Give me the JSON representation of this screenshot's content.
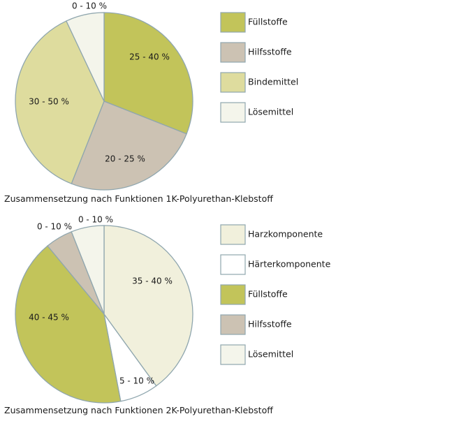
{
  "chart_data": [
    {
      "type": "pie",
      "title": "Zusammensetzung nach Funktionen 1K-Polyurethan-Klebstoff",
      "unit": "%",
      "slices": [
        {
          "name": "Füllstoffe",
          "label": "25 - 40 %",
          "value": 31,
          "color": "#c2c45a"
        },
        {
          "name": "Hilfsstoffe",
          "label": "20 - 25 %",
          "value": 25,
          "color": "#ccc2b3"
        },
        {
          "name": "Bindemittel",
          "label": "30 - 50 %",
          "value": 37,
          "color": "#dedc9e"
        },
        {
          "name": "Lösemittel",
          "label": "0 - 10 %",
          "value": 7,
          "color": "#f4f5eb"
        }
      ],
      "legend": [
        "Füllstoffe",
        "Hilfsstoffe",
        "Bindemittel",
        "Lösemittel"
      ],
      "legend_placement": "right"
    },
    {
      "type": "pie",
      "title": "Zusammensetzung nach Funktionen 2K-Polyurethan-Klebstoff",
      "unit": "%",
      "slices": [
        {
          "name": "Harzkomponente",
          "label": "35 - 40 %",
          "value": 40,
          "color": "#f1f0dc"
        },
        {
          "name": "Härterkomponente",
          "label": "5 - 10 %",
          "value": 7,
          "color": "#ffffff"
        },
        {
          "name": "Füllstoffe",
          "label": "40 - 45 %",
          "value": 42,
          "color": "#c2c45a"
        },
        {
          "name": "Hilfsstoffe",
          "label": "0 - 10 %",
          "value": 5,
          "color": "#ccc2b3"
        },
        {
          "name": "Lösemittel",
          "label": "0 - 10 %",
          "value": 6,
          "color": "#f4f5eb"
        }
      ],
      "legend": [
        "Harzkomponente",
        "Härterkomponente",
        "Füllstoffe",
        "Hilfsstoffe",
        "Lösemittel"
      ],
      "legend_placement": "right"
    }
  ],
  "colors": {
    "outline": "#8fa6ae",
    "text": "#1a1a1a"
  }
}
